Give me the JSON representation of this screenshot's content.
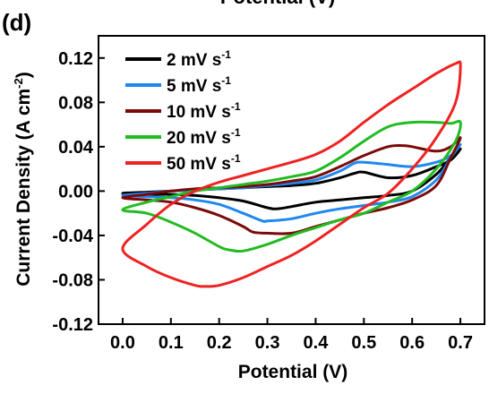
{
  "panel_label": "(d)",
  "top_cut_label": "Potential (V)",
  "chart_data": {
    "type": "line",
    "title": "",
    "xlabel": "Potential (V)",
    "ylabel": "Current Density (A cm",
    "ylabel_sup": "-2",
    "ylabel_close": ")",
    "xlim": [
      -0.05,
      0.75
    ],
    "ylim": [
      -0.12,
      0.14
    ],
    "xticks": [
      0.0,
      0.1,
      0.2,
      0.3,
      0.4,
      0.5,
      0.6,
      0.7
    ],
    "xtick_labels": [
      "0.0",
      "0.1",
      "0.2",
      "0.3",
      "0.4",
      "0.5",
      "0.6",
      "0.7"
    ],
    "yticks": [
      -0.12,
      -0.08,
      -0.04,
      0.0,
      0.04,
      0.08,
      0.12
    ],
    "ytick_labels": [
      "-0.12",
      "-0.08",
      "-0.04",
      "0.00",
      "0.04",
      "0.08",
      "0.12"
    ],
    "grid": false,
    "legend_position": "top-left",
    "unit_base": "mV s",
    "unit_sup": "-1",
    "series": [
      {
        "name": "2 mV s-1",
        "rate": "2",
        "color": "#000000",
        "x": [
          0.0,
          0.05,
          0.1,
          0.15,
          0.2,
          0.25,
          0.3,
          0.35,
          0.4,
          0.45,
          0.48,
          0.5,
          0.55,
          0.6,
          0.65,
          0.68,
          0.7,
          0.68,
          0.65,
          0.6,
          0.55,
          0.5,
          0.45,
          0.4,
          0.35,
          0.32,
          0.3,
          0.25,
          0.2,
          0.15,
          0.1,
          0.05,
          0.0
        ],
        "y": [
          -0.002,
          -0.001,
          0.0,
          0.001,
          0.002,
          0.003,
          0.004,
          0.005,
          0.007,
          0.012,
          0.016,
          0.017,
          0.012,
          0.014,
          0.022,
          0.028,
          0.038,
          0.03,
          0.015,
          0.0,
          -0.004,
          -0.006,
          -0.008,
          -0.01,
          -0.014,
          -0.016,
          -0.015,
          -0.009,
          -0.006,
          -0.004,
          -0.003,
          -0.003,
          -0.002
        ]
      },
      {
        "name": "5 mV s-1",
        "rate": "5",
        "color": "#1e88f0",
        "x": [
          0.0,
          0.05,
          0.1,
          0.15,
          0.2,
          0.25,
          0.3,
          0.35,
          0.4,
          0.45,
          0.48,
          0.5,
          0.55,
          0.6,
          0.65,
          0.68,
          0.7,
          0.68,
          0.65,
          0.6,
          0.55,
          0.5,
          0.45,
          0.4,
          0.35,
          0.3,
          0.29,
          0.25,
          0.2,
          0.15,
          0.1,
          0.05,
          0.0
        ],
        "y": [
          -0.004,
          -0.002,
          0.0,
          0.001,
          0.002,
          0.003,
          0.005,
          0.007,
          0.01,
          0.018,
          0.025,
          0.026,
          0.024,
          0.022,
          0.026,
          0.032,
          0.042,
          0.03,
          0.01,
          -0.005,
          -0.01,
          -0.013,
          -0.016,
          -0.02,
          -0.025,
          -0.027,
          -0.027,
          -0.02,
          -0.012,
          -0.008,
          -0.006,
          -0.005,
          -0.004
        ]
      },
      {
        "name": "10 mV s-1",
        "rate": "10",
        "color": "#7a0a0a",
        "x": [
          0.0,
          0.05,
          0.1,
          0.15,
          0.2,
          0.25,
          0.3,
          0.35,
          0.4,
          0.45,
          0.5,
          0.55,
          0.58,
          0.6,
          0.65,
          0.68,
          0.7,
          0.68,
          0.65,
          0.6,
          0.55,
          0.5,
          0.45,
          0.4,
          0.35,
          0.3,
          0.27,
          0.25,
          0.2,
          0.15,
          0.1,
          0.05,
          0.0
        ],
        "y": [
          -0.006,
          -0.003,
          0.0,
          0.002,
          0.003,
          0.004,
          0.006,
          0.009,
          0.013,
          0.022,
          0.032,
          0.04,
          0.041,
          0.04,
          0.036,
          0.04,
          0.048,
          0.03,
          0.005,
          -0.008,
          -0.015,
          -0.02,
          -0.026,
          -0.032,
          -0.038,
          -0.038,
          -0.037,
          -0.032,
          -0.022,
          -0.015,
          -0.01,
          -0.008,
          -0.006
        ]
      },
      {
        "name": "20 mV s-1",
        "rate": "20",
        "color": "#22bb22",
        "x": [
          0.0,
          0.05,
          0.1,
          0.15,
          0.2,
          0.25,
          0.3,
          0.35,
          0.4,
          0.45,
          0.5,
          0.55,
          0.6,
          0.65,
          0.68,
          0.7,
          0.69,
          0.65,
          0.6,
          0.55,
          0.5,
          0.45,
          0.4,
          0.35,
          0.3,
          0.25,
          0.22,
          0.2,
          0.15,
          0.1,
          0.05,
          0.0
        ],
        "y": [
          -0.017,
          -0.01,
          -0.005,
          0.0,
          0.003,
          0.006,
          0.009,
          0.013,
          0.018,
          0.03,
          0.045,
          0.058,
          0.062,
          0.062,
          0.061,
          0.062,
          0.045,
          0.02,
          0.0,
          -0.01,
          -0.02,
          -0.026,
          -0.033,
          -0.04,
          -0.048,
          -0.054,
          -0.053,
          -0.05,
          -0.038,
          -0.028,
          -0.02,
          -0.017
        ]
      },
      {
        "name": "50 mV s-1",
        "rate": "50",
        "color": "#ee2222",
        "x": [
          0.0,
          0.05,
          0.1,
          0.15,
          0.2,
          0.25,
          0.3,
          0.35,
          0.4,
          0.45,
          0.5,
          0.55,
          0.6,
          0.65,
          0.69,
          0.7,
          0.69,
          0.65,
          0.6,
          0.55,
          0.5,
          0.45,
          0.4,
          0.35,
          0.3,
          0.25,
          0.2,
          0.17,
          0.15,
          0.1,
          0.05,
          0.0
        ],
        "y": [
          -0.052,
          -0.03,
          -0.012,
          0.0,
          0.008,
          0.014,
          0.02,
          0.026,
          0.033,
          0.045,
          0.062,
          0.078,
          0.092,
          0.106,
          0.115,
          0.113,
          0.08,
          0.048,
          0.02,
          -0.002,
          -0.015,
          -0.03,
          -0.045,
          -0.058,
          -0.068,
          -0.078,
          -0.085,
          -0.086,
          -0.085,
          -0.078,
          -0.068,
          -0.052
        ]
      }
    ]
  }
}
